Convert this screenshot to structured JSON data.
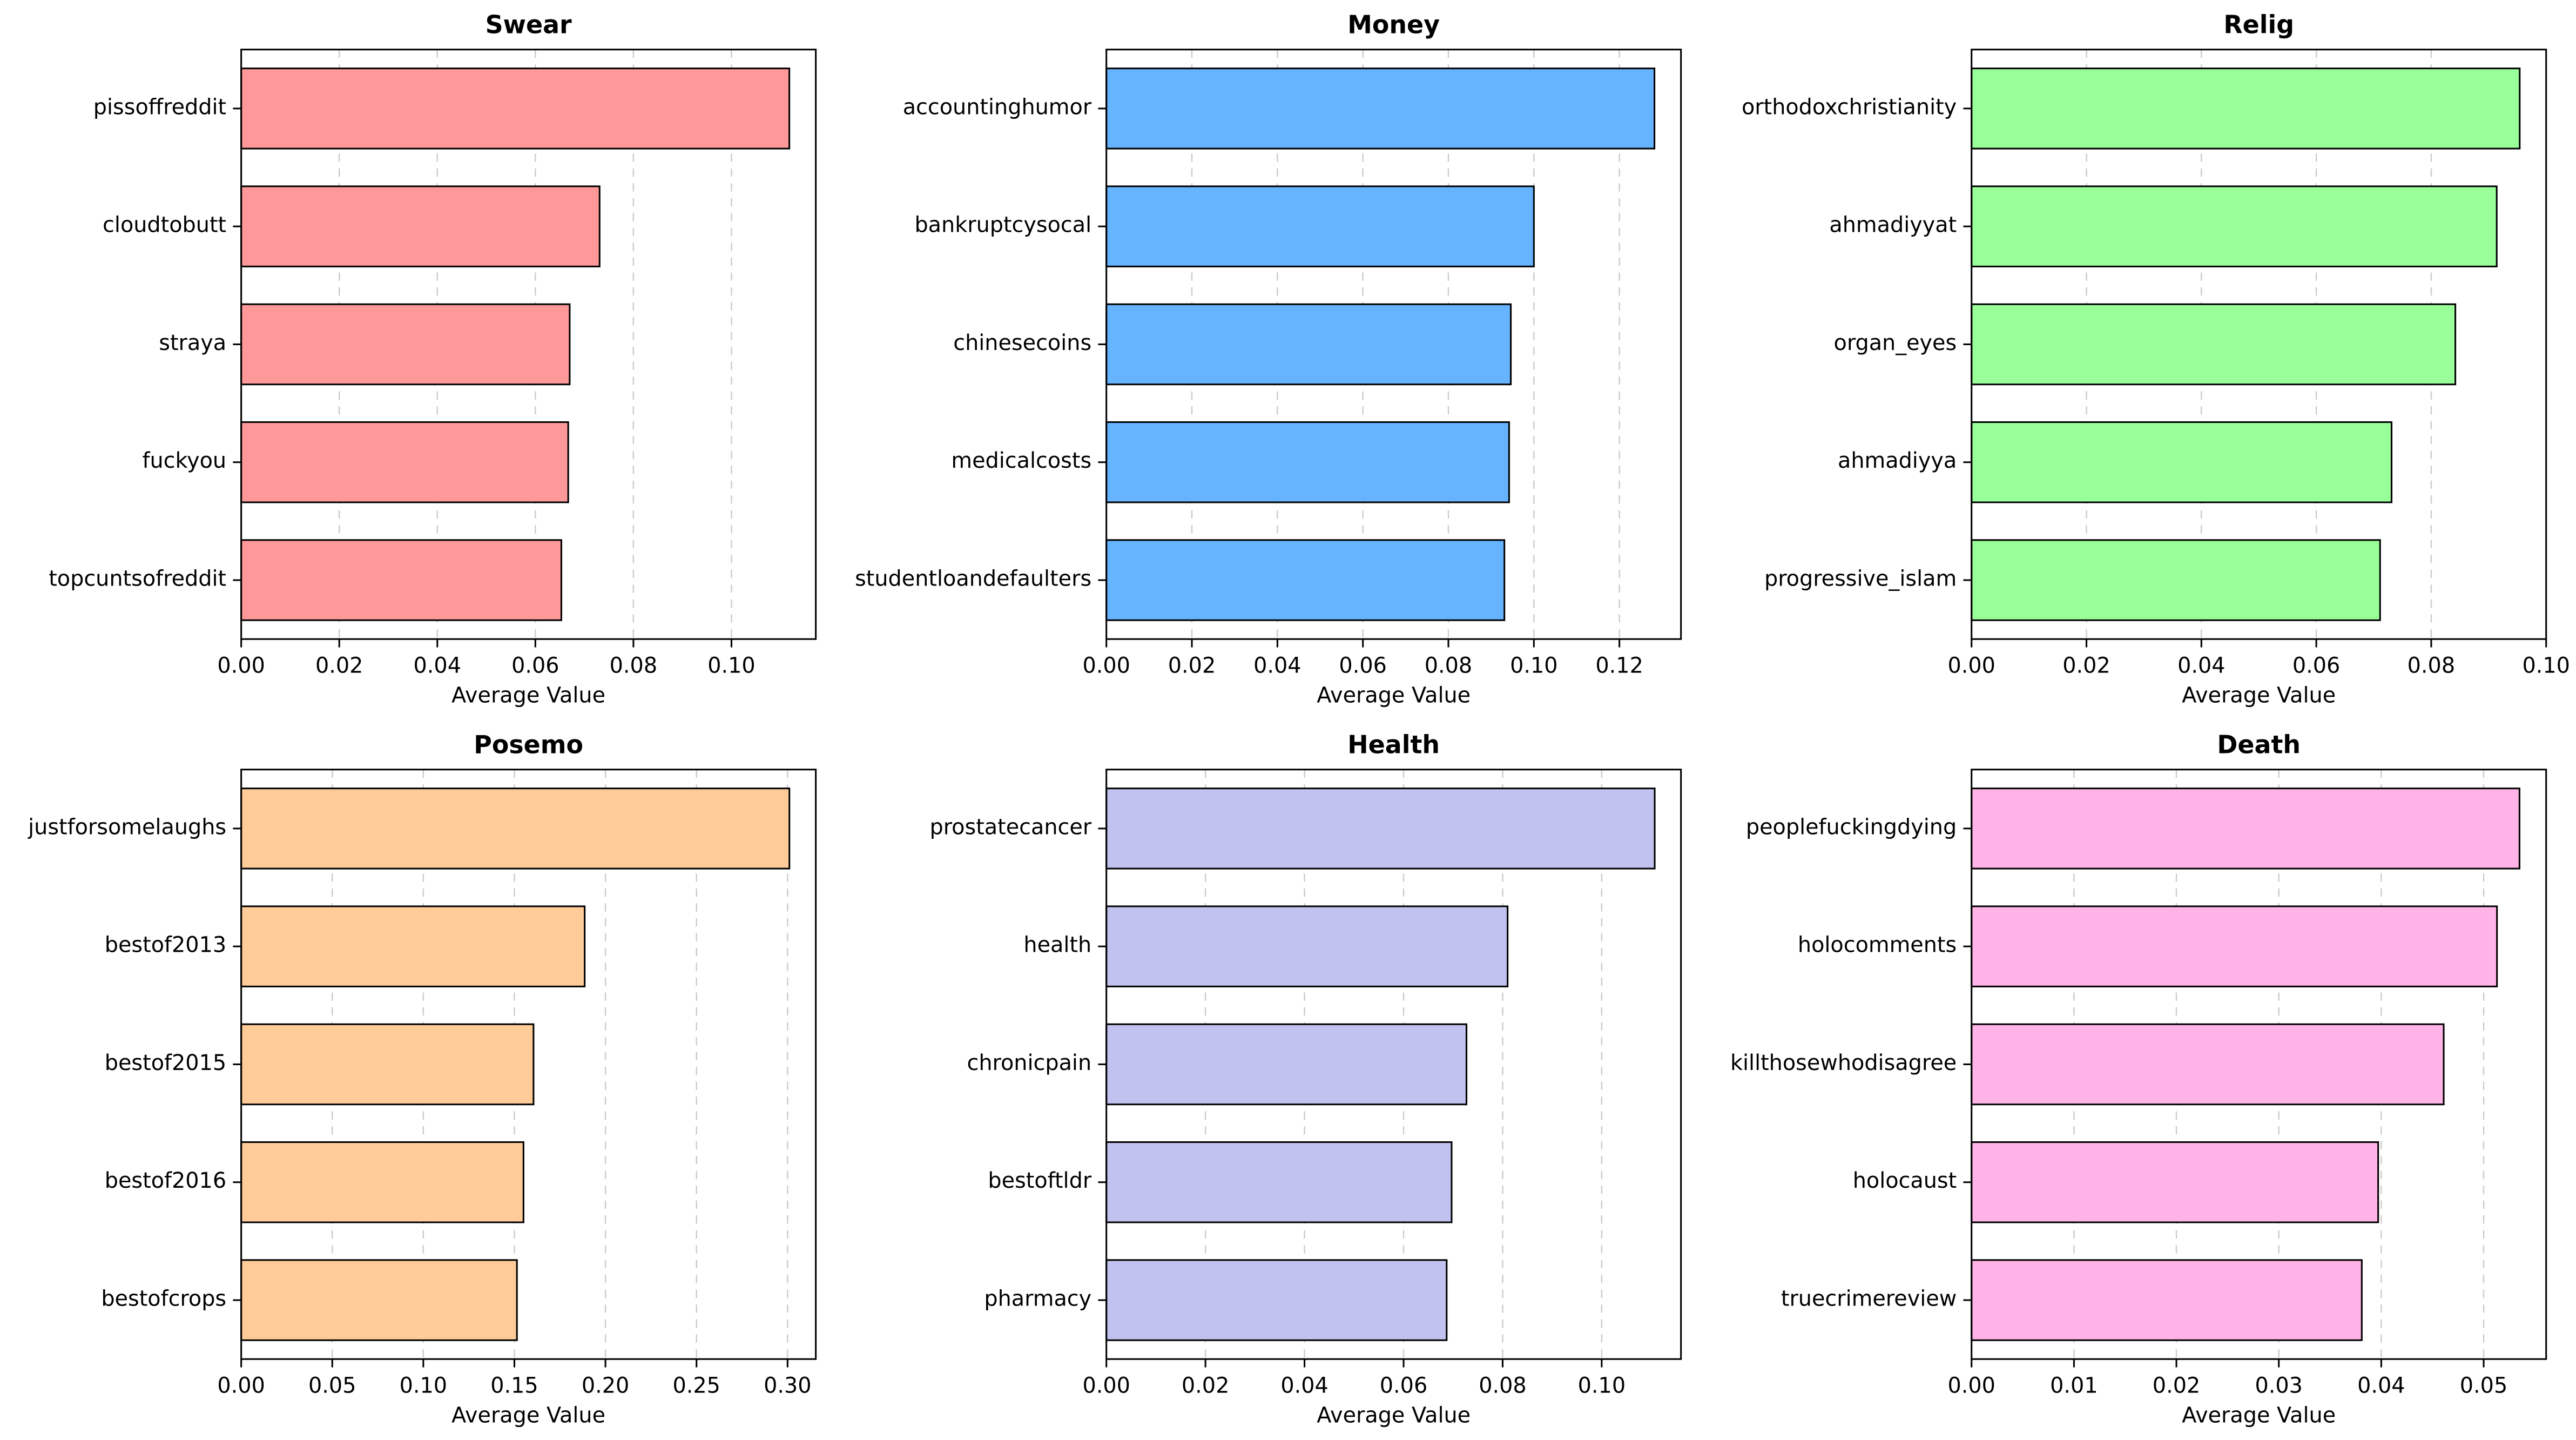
{
  "chart_data": [
    {
      "type": "barh",
      "title": "Swear",
      "xlabel": "Average Value",
      "color": "#ff9999",
      "grid": true,
      "categories": [
        "pissoffreddit",
        "cloudtobutt",
        "straya",
        "fuckyou",
        "topcuntsofreddit"
      ],
      "values": [
        0.1118,
        0.0731,
        0.067,
        0.0667,
        0.0653
      ],
      "xlim": [
        0,
        0.1172
      ],
      "xticks": [
        {
          "value": 0,
          "label": "0.00"
        },
        {
          "value": 0.02,
          "label": "0.02"
        },
        {
          "value": 0.04,
          "label": "0.04"
        },
        {
          "value": 0.06,
          "label": "0.06"
        },
        {
          "value": 0.08,
          "label": "0.08"
        },
        {
          "value": 0.1,
          "label": "0.10"
        }
      ]
    },
    {
      "type": "barh",
      "title": "Money",
      "xlabel": "Average Value",
      "color": "#66b3ff",
      "grid": true,
      "categories": [
        "accountinghumor",
        "bankruptcysocal",
        "chinesecoins",
        "medicalcosts",
        "studentloandefaulters"
      ],
      "values": [
        0.1282,
        0.1,
        0.0946,
        0.0942,
        0.0931
      ],
      "xlim": [
        0,
        0.1344
      ],
      "xticks": [
        {
          "value": 0,
          "label": "0.00"
        },
        {
          "value": 0.02,
          "label": "0.02"
        },
        {
          "value": 0.04,
          "label": "0.04"
        },
        {
          "value": 0.06,
          "label": "0.06"
        },
        {
          "value": 0.08,
          "label": "0.08"
        },
        {
          "value": 0.1,
          "label": "0.10"
        },
        {
          "value": 0.12,
          "label": "0.12"
        }
      ]
    },
    {
      "type": "barh",
      "title": "Relig",
      "xlabel": "Average Value",
      "color": "#99ff99",
      "grid": true,
      "categories": [
        "orthodoxchristianity",
        "ahmadiyyat",
        "organ_eyes",
        "ahmadiyya",
        "progressive_islam"
      ],
      "values": [
        0.0954,
        0.0914,
        0.0842,
        0.0731,
        0.0711
      ],
      "xlim": [
        0,
        0.1
      ],
      "xticks": [
        {
          "value": 0,
          "label": "0.00"
        },
        {
          "value": 0.02,
          "label": "0.02"
        },
        {
          "value": 0.04,
          "label": "0.04"
        },
        {
          "value": 0.06,
          "label": "0.06"
        },
        {
          "value": 0.08,
          "label": "0.08"
        },
        {
          "value": 0.1,
          "label": "0.10"
        }
      ]
    },
    {
      "type": "barh",
      "title": "Posemo",
      "xlabel": "Average Value",
      "color": "#ffcc99",
      "grid": true,
      "categories": [
        "justforsomelaughs",
        "bestof2013",
        "bestof2015",
        "bestof2016",
        "bestofcrops"
      ],
      "values": [
        0.301,
        0.1886,
        0.1605,
        0.155,
        0.1514
      ],
      "xlim": [
        0,
        0.3155
      ],
      "xticks": [
        {
          "value": 0,
          "label": "0.00"
        },
        {
          "value": 0.05,
          "label": "0.05"
        },
        {
          "value": 0.1,
          "label": "0.10"
        },
        {
          "value": 0.15,
          "label": "0.15"
        },
        {
          "value": 0.2,
          "label": "0.20"
        },
        {
          "value": 0.25,
          "label": "0.25"
        },
        {
          "value": 0.3,
          "label": "0.30"
        }
      ]
    },
    {
      "type": "barh",
      "title": "Health",
      "xlabel": "Average Value",
      "color": "#c2c2f0",
      "grid": true,
      "categories": [
        "prostatecancer",
        "health",
        "chronicpain",
        "bestoftldr",
        "pharmacy"
      ],
      "values": [
        0.1107,
        0.081,
        0.0727,
        0.0697,
        0.0687
      ],
      "xlim": [
        0,
        0.116
      ],
      "xticks": [
        {
          "value": 0,
          "label": "0.00"
        },
        {
          "value": 0.02,
          "label": "0.02"
        },
        {
          "value": 0.04,
          "label": "0.04"
        },
        {
          "value": 0.06,
          "label": "0.06"
        },
        {
          "value": 0.08,
          "label": "0.08"
        },
        {
          "value": 0.1,
          "label": "0.10"
        }
      ]
    },
    {
      "type": "barh",
      "title": "Death",
      "xlabel": "Average Value",
      "color": "#ffb3e6",
      "grid": true,
      "categories": [
        "peoplefuckingdying",
        "holocomments",
        "killthosewhodisagree",
        "holocaust",
        "truecrimereview"
      ],
      "values": [
        0.0535,
        0.0513,
        0.0461,
        0.0397,
        0.0381
      ],
      "xlim": [
        0,
        0.0561
      ],
      "xticks": [
        {
          "value": 0,
          "label": "0.00"
        },
        {
          "value": 0.01,
          "label": "0.01"
        },
        {
          "value": 0.02,
          "label": "0.02"
        },
        {
          "value": 0.03,
          "label": "0.03"
        },
        {
          "value": 0.04,
          "label": "0.04"
        },
        {
          "value": 0.05,
          "label": "0.05"
        }
      ]
    }
  ]
}
